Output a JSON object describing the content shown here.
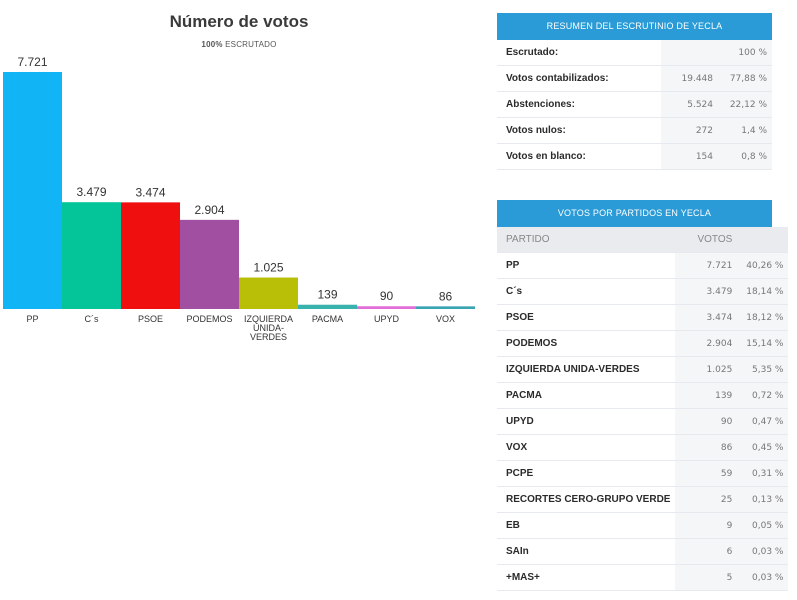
{
  "chart_data": {
    "type": "bar",
    "title": "Número de votos",
    "subtitle_strong": "100%",
    "subtitle_rest": "ESCRUTADO",
    "categories": [
      "PP",
      "C´s",
      "PSOE",
      "PODEMOS",
      "IZQUIERDA UNIDA-VERDES",
      "PACMA",
      "UPYD",
      "VOX"
    ],
    "category_lines": [
      [
        "PP"
      ],
      [
        "C´s"
      ],
      [
        "PSOE"
      ],
      [
        "PODEMOS"
      ],
      [
        "IZQUIERDA",
        "UNIDA-",
        "VERDES"
      ],
      [
        "PACMA"
      ],
      [
        "UPYD"
      ],
      [
        "VOX"
      ]
    ],
    "values": [
      7721,
      3479,
      3474,
      2904,
      1025,
      139,
      90,
      86
    ],
    "value_labels": [
      "7.721",
      "3.479",
      "3.474",
      "2.904",
      "1.025",
      "139",
      "90",
      "86"
    ],
    "colors": [
      "#11b4f5",
      "#04c49a",
      "#ef0f0f",
      "#a14fa0",
      "#b9bf06",
      "#38b2ad",
      "#e46ed8",
      "#39a4b2"
    ],
    "ylim": [
      0,
      7721
    ],
    "grid": false,
    "legend": "none"
  },
  "summary": {
    "title": "RESUMEN DEL ESCRUTINIO DE YECLA",
    "rows": [
      {
        "label": "Escrutado:",
        "value": "",
        "pct": "100 %"
      },
      {
        "label": "Votos contabilizados:",
        "value": "19.448",
        "pct": "77,88 %"
      },
      {
        "label": "Abstenciones:",
        "value": "5.524",
        "pct": "22,12 %"
      },
      {
        "label": "Votos nulos:",
        "value": "272",
        "pct": "1,4 %"
      },
      {
        "label": "Votos en blanco:",
        "value": "154",
        "pct": "0,8 %"
      }
    ]
  },
  "parties": {
    "title": "VOTOS POR PARTIDOS EN YECLA",
    "col_party": "PARTIDO",
    "col_votes": "VOTOS",
    "rows": [
      {
        "name": "PP",
        "votes": "7.721",
        "pct": "40,26 %"
      },
      {
        "name": "C´s",
        "votes": "3.479",
        "pct": "18,14 %"
      },
      {
        "name": "PSOE",
        "votes": "3.474",
        "pct": "18,12 %"
      },
      {
        "name": "PODEMOS",
        "votes": "2.904",
        "pct": "15,14 %"
      },
      {
        "name": "IZQUIERDA UNIDA-VERDES",
        "votes": "1.025",
        "pct": "5,35 %"
      },
      {
        "name": "PACMA",
        "votes": "139",
        "pct": "0,72 %"
      },
      {
        "name": "UPYD",
        "votes": "90",
        "pct": "0,47 %"
      },
      {
        "name": "VOX",
        "votes": "86",
        "pct": "0,45 %"
      },
      {
        "name": "PCPE",
        "votes": "59",
        "pct": "0,31 %"
      },
      {
        "name": "RECORTES CERO-GRUPO VERDE",
        "votes": "25",
        "pct": "0,13 %"
      },
      {
        "name": "EB",
        "votes": "9",
        "pct": "0,05 %"
      },
      {
        "name": "SAIn",
        "votes": "6",
        "pct": "0,03 %"
      },
      {
        "name": "+MAS+",
        "votes": "5",
        "pct": "0,03 %"
      }
    ]
  }
}
